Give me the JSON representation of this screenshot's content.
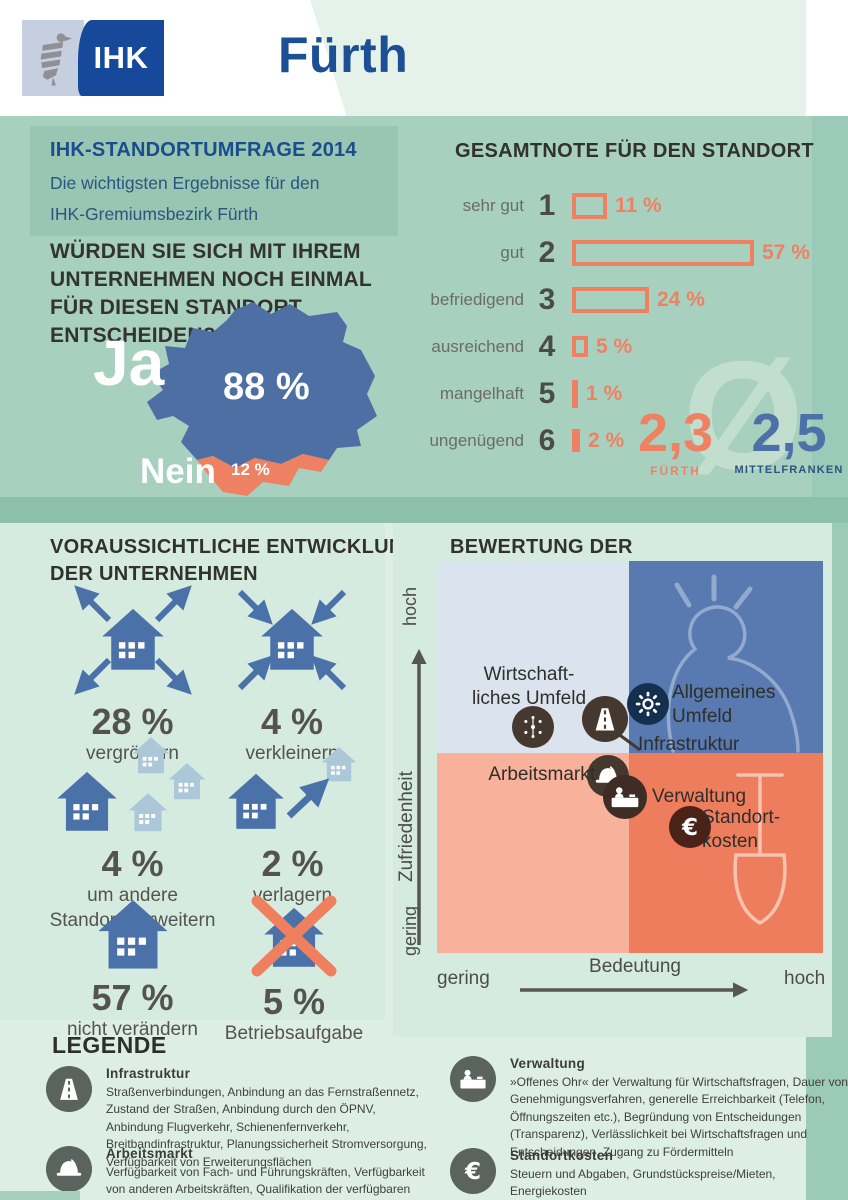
{
  "page": {
    "city": "Fürth",
    "logo": "IHK"
  },
  "intro": {
    "title": "IHK-STANDORTUMFRAGE 2014",
    "subtitle1": "Die wichtigsten Ergebnisse für den",
    "subtitle2": "IHK-Gremiumsbezirk Fürth"
  },
  "question": {
    "line1": "WÜRDEN SIE SICH MIT IHREM",
    "line2": "UNTERNEHMEN NOCH EINMAL",
    "line3": "FÜR DIESEN STANDORT",
    "line4": "ENTSCHEIDEN?",
    "yes": "Ja",
    "yes_pct": "88 %",
    "no": "Nein",
    "no_pct": "12 %"
  },
  "gesamtnote": {
    "title": "GESAMTNOTE FÜR DEN STANDORT",
    "rows": [
      {
        "label": "sehr gut",
        "grade": "1",
        "pct": "11 %",
        "value": 11
      },
      {
        "label": "gut",
        "grade": "2",
        "pct": "57 %",
        "value": 57
      },
      {
        "label": "befriedigend",
        "grade": "3",
        "pct": "24 %",
        "value": 24
      },
      {
        "label": "ausreichend",
        "grade": "4",
        "pct": "5 %",
        "value": 5
      },
      {
        "label": "mangelhaft",
        "grade": "5",
        "pct": "1 %",
        "value": 1
      },
      {
        "label": "ungenügend",
        "grade": "6",
        "pct": "2 %",
        "value": 2
      }
    ],
    "avg_symbol": "Ø",
    "avg_fuerth": "2,3",
    "avg_fuerth_label": "FÜRTH",
    "avg_region": "2,5",
    "avg_region_label": "MITTELFRANKEN"
  },
  "entwicklung": {
    "title1": "VORAUSSICHTLICHE ENTWICKLUNG",
    "title2": "DER UNTERNEHMEN",
    "items": [
      {
        "pct": "28 %",
        "label": "vergrößern"
      },
      {
        "pct": "4 %",
        "label": "verkleinern"
      },
      {
        "pct": "4 %",
        "label": "um andere",
        "label2": "Standorte erweitern"
      },
      {
        "pct": "2 %",
        "label": "verlagern"
      },
      {
        "pct": "57 %",
        "label": "nicht verändern"
      },
      {
        "pct": "5 %",
        "label": "Betriebsaufgabe"
      }
    ]
  },
  "bewertung": {
    "title": "BEWERTUNG DER STANDORTFAKTOREN",
    "y_axis": "Zufriedenheit",
    "x_axis": "Bedeutung",
    "y_top": "hoch",
    "y_bottom": "gering",
    "x_left": "gering",
    "x_right": "hoch",
    "factors": [
      {
        "line1": "Wirtschaft-",
        "line2": "liches Umfeld"
      },
      {
        "line1": "Allgemeines",
        "line2": "Umfeld"
      },
      {
        "line1": "Infrastruktur"
      },
      {
        "line1": "Arbeitsmarkt"
      },
      {
        "line1": "Verwaltung"
      },
      {
        "line1": "Standort-",
        "line2": "kosten"
      }
    ]
  },
  "legende": {
    "title": "LEGENDE",
    "items": [
      {
        "name": "Infrastruktur",
        "desc": "Straßenverbindungen, Anbindung an das Fernstraßennetz, Zustand der Straßen, Anbindung durch den ÖPNV, Anbindung Flugverkehr, Schienenfernverkehr, Breitbandinfrastruktur, Planungssicherheit Stromversorgung, Verfügbarkeit von Erweiterungsflächen"
      },
      {
        "name": "Arbeitsmarkt",
        "desc": "Verfügbarkeit von Fach- und Führungskräften, Verfügbarkeit von anderen Arbeitskräften, Qualifikation der verfügbaren Arbeitskräfte, Verfügbarkeit von Ausbildungsbewerbern, Weiterbildungsmöglichkeiten"
      },
      {
        "name": "Verwaltung",
        "desc": "»Offenes Ohr« der Verwaltung für Wirtschaftsfragen, Dauer von Genehmigungsverfahren, generelle Erreichbarkeit (Telefon, Öffnungszeiten etc.), Begründung von Entscheidungen (Transparenz), Verlässlichkeit bei Wirtschaftsfragen und Entscheidungen, Zugang zu Fördermitteln"
      },
      {
        "name": "Standortkosten",
        "desc": "Steuern und Abgaben, Grundstückspreise/Mieten, Energiekosten"
      }
    ]
  },
  "colors": {
    "salmon": "#ef8163",
    "blue": "#4b72a8",
    "dark_blue": "#1c4f93",
    "mint": "#a8d0bf"
  },
  "chart_data": [
    {
      "type": "bar",
      "orientation": "horizontal",
      "title": "Gesamtnote für den Standort",
      "categories": [
        "sehr gut (1)",
        "gut (2)",
        "befriedigend (3)",
        "ausreichend (4)",
        "mangelhaft (5)",
        "ungenügend (6)"
      ],
      "values": [
        11,
        57,
        24,
        5,
        1,
        2
      ],
      "unit": "%",
      "annotations": {
        "durchschnitt_fuerth": "2,3",
        "durchschnitt_mittelfranken": "2,5"
      }
    },
    {
      "type": "pie",
      "title": "Würden Sie sich mit Ihrem Unternehmen noch einmal für diesen Standort entscheiden?",
      "categories": [
        "Ja",
        "Nein"
      ],
      "values": [
        88,
        12
      ],
      "unit": "%"
    },
    {
      "type": "bar",
      "title": "Voraussichtliche Entwicklung der Unternehmen",
      "categories": [
        "vergrößern",
        "verkleinern",
        "um andere Standorte erweitern",
        "verlagern",
        "nicht verändern",
        "Betriebsaufgabe"
      ],
      "values": [
        28,
        4,
        4,
        2,
        57,
        5
      ],
      "unit": "%"
    },
    {
      "type": "scatter",
      "title": "Bewertung der Standortfaktoren",
      "xlabel": "Bedeutung",
      "ylabel": "Zufriedenheit",
      "x_range": [
        "gering",
        "hoch"
      ],
      "y_range": [
        "gering",
        "hoch"
      ],
      "points": [
        {
          "label": "Wirtschaftliches Umfeld",
          "x": 0.25,
          "y": 0.58
        },
        {
          "label": "Infrastruktur",
          "x": 0.44,
          "y": 0.6
        },
        {
          "label": "Allgemeines Umfeld",
          "x": 0.55,
          "y": 0.63
        },
        {
          "label": "Arbeitsmarkt",
          "x": 0.44,
          "y": 0.45
        },
        {
          "label": "Verwaltung",
          "x": 0.49,
          "y": 0.4
        },
        {
          "label": "Standortkosten",
          "x": 0.66,
          "y": 0.32
        }
      ]
    }
  ]
}
